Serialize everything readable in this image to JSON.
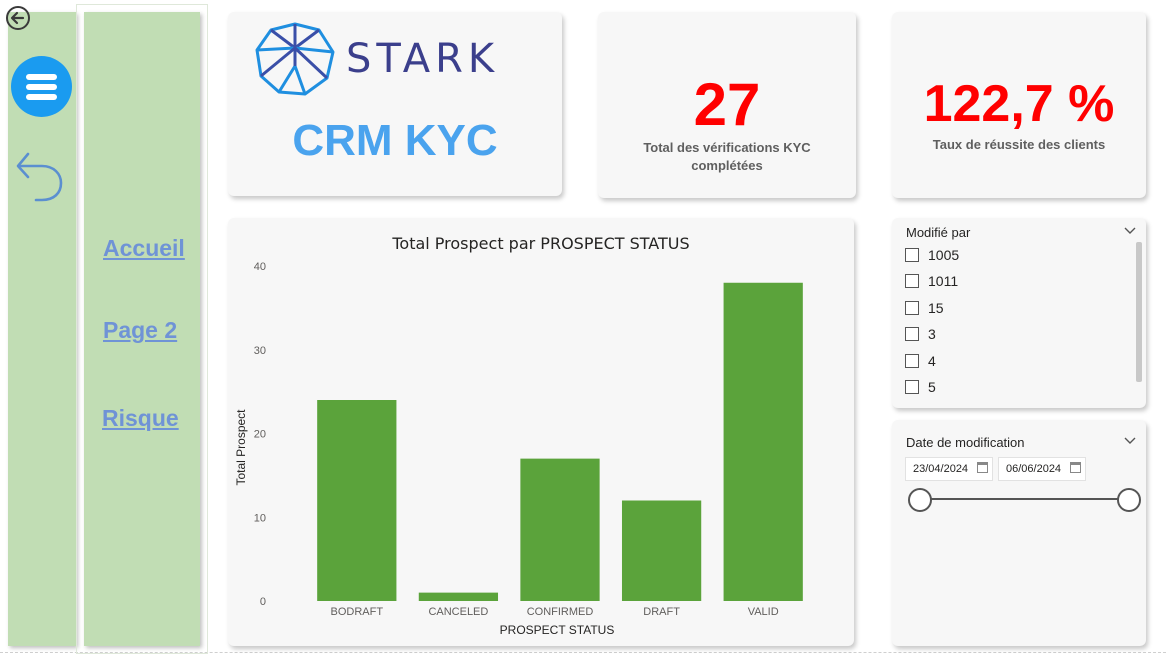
{
  "logo": {
    "text": "STARK"
  },
  "title": "CRM KYC",
  "nav": {
    "items": [
      {
        "label": "Accueil"
      },
      {
        "label": "Page 2"
      },
      {
        "label": "Risque"
      }
    ]
  },
  "kpis": [
    {
      "value": "27",
      "label": "Total des vérifications KYC complétées",
      "color": "#ff0000"
    },
    {
      "value": "122,7 %",
      "label": "Taux de réussite des clients",
      "color": "#ff0000"
    }
  ],
  "slicer_modifie": {
    "title": "Modifié par",
    "options": [
      {
        "label": "1005"
      },
      {
        "label": "1011"
      },
      {
        "label": "15"
      },
      {
        "label": "3"
      },
      {
        "label": "4"
      },
      {
        "label": "5"
      }
    ]
  },
  "slicer_date": {
    "title": "Date de modification",
    "start": "23/04/2024",
    "end": "06/06/2024"
  },
  "chart_data": {
    "type": "bar",
    "title": "Total Prospect par PROSPECT STATUS",
    "xlabel": "PROSPECT STATUS",
    "ylabel": "Total Prospect",
    "categories": [
      "BODRAFT",
      "CANCELED",
      "CONFIRMED",
      "DRAFT",
      "VALID"
    ],
    "values": [
      24,
      1,
      17,
      12,
      38
    ],
    "ylim": [
      0,
      40
    ],
    "yticks": [
      0,
      10,
      20,
      30,
      40
    ],
    "color": "#5ba33b",
    "grid": false,
    "legend": "none"
  }
}
